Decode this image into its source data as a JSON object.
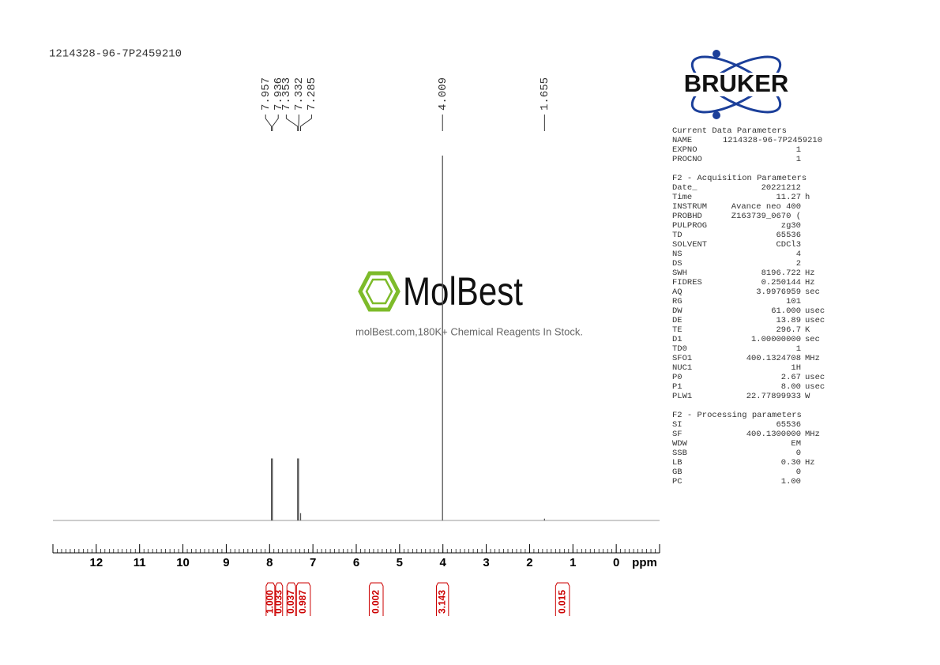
{
  "chart_data": {
    "type": "nmr",
    "title": "1214328-96-7P2459210",
    "x_label": "ppm",
    "xlim": [
      13,
      -1
    ],
    "xticks": [
      12,
      11,
      10,
      9,
      8,
      7,
      6,
      5,
      4,
      3,
      2,
      1,
      0
    ],
    "x": [
      7.957,
      7.936,
      7.353,
      7.332,
      7.285,
      4.009,
      1.655
    ],
    "values": [
      17,
      17,
      17,
      17,
      2,
      100,
      0.5
    ],
    "color": "#555555",
    "integrals": {
      "ranges": [
        [
          8.08,
          7.88
        ],
        [
          7.86,
          7.7
        ],
        [
          7.6,
          7.4
        ],
        [
          7.38,
          7.06
        ],
        [
          5.7,
          5.38
        ],
        [
          4.15,
          3.87
        ],
        [
          1.4,
          1.08
        ]
      ],
      "values": [
        1,
        0.033,
        0.037,
        0.987,
        0.002,
        3.143,
        0.015
      ],
      "value_labels": [
        "1.000",
        "0.033",
        "0.037",
        "0.987",
        "0.002",
        "3.143",
        "0.015"
      ],
      "color": "#cc0000"
    }
  },
  "watermark": {
    "logo": "MolBest",
    "tagline": "molBest.com,180K+ Chemical Reagents In Stock."
  },
  "brand": "BRUKER",
  "parameters": [
    {
      "heading": "Current Data Parameters",
      "rows": [
        [
          "NAME",
          "1214328-96-7P2459210"
        ],
        [
          "EXPNO",
          "1"
        ],
        [
          "PROCNO",
          "1"
        ]
      ]
    },
    {
      "heading": "F2 - Acquisition Parameters",
      "rows": [
        [
          "Date_",
          "20221212"
        ],
        [
          "Time",
          "11.27",
          "h"
        ],
        [
          "INSTRUM",
          "Avance neo 400"
        ],
        [
          "PROBHD",
          "Z163739_0670 ("
        ],
        [
          "PULPROG",
          "zg30"
        ],
        [
          "TD",
          "65536"
        ],
        [
          "SOLVENT",
          "CDCl3"
        ],
        [
          "NS",
          "4"
        ],
        [
          "DS",
          "2"
        ],
        [
          "SWH",
          "8196.722",
          "Hz"
        ],
        [
          "FIDRES",
          "0.250144",
          "Hz"
        ],
        [
          "AQ",
          "3.9976959",
          "sec"
        ],
        [
          "RG",
          "101"
        ],
        [
          "DW",
          "61.000",
          "usec"
        ],
        [
          "DE",
          "13.89",
          "usec"
        ],
        [
          "TE",
          "296.7",
          "K"
        ],
        [
          "D1",
          "1.00000000",
          "sec"
        ],
        [
          "TD0",
          "1"
        ],
        [
          "SFO1",
          "400.1324708",
          "MHz"
        ],
        [
          "NUC1",
          "1H"
        ],
        [
          "P0",
          "2.67",
          "usec"
        ],
        [
          "P1",
          "8.00",
          "usec"
        ],
        [
          "PLW1",
          "22.77899933",
          "W"
        ]
      ]
    },
    {
      "heading": "F2 - Processing parameters",
      "rows": [
        [
          "SI",
          "65536"
        ],
        [
          "SF",
          "400.1300000",
          "MHz"
        ],
        [
          "WDW",
          "EM"
        ],
        [
          "SSB",
          "0"
        ],
        [
          "LB",
          "0.30",
          "Hz"
        ],
        [
          "GB",
          "0"
        ],
        [
          "PC",
          "1.00"
        ]
      ]
    }
  ]
}
